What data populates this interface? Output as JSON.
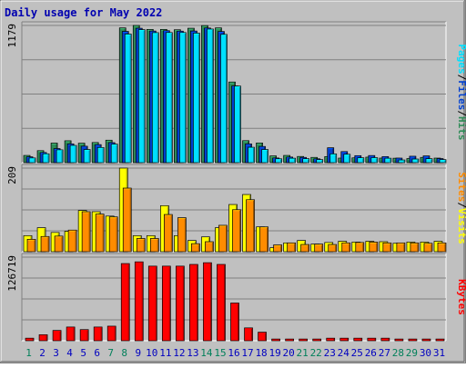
{
  "chart_data": {
    "type": "bar",
    "title": "Daily usage for May 2022",
    "categories": [
      "1",
      "2",
      "3",
      "4",
      "5",
      "6",
      "7",
      "8",
      "9",
      "10",
      "11",
      "12",
      "13",
      "14",
      "15",
      "16",
      "17",
      "18",
      "19",
      "20",
      "21",
      "22",
      "23",
      "24",
      "25",
      "26",
      "27",
      "28",
      "29",
      "30",
      "31"
    ],
    "weekend_days": [
      "1",
      "7",
      "8",
      "14",
      "15",
      "21",
      "22",
      "28",
      "29"
    ],
    "panels": [
      {
        "name": "hits-files-pages",
        "ymax_label": "1179",
        "ylim": [
          0,
          1179
        ],
        "series": [
          {
            "name": "Hits",
            "color": "#2e8b57",
            "values": [
              62,
              103,
              168,
              188,
              167,
              173,
              193,
              1158,
              1179,
              1145,
              1145,
              1142,
              1155,
              1178,
              1158,
              693,
              189,
              169,
              58,
              62,
              53,
              45,
              52,
              39,
              41,
              47,
              39,
              38,
              35,
              45,
              39
            ]
          },
          {
            "name": "Files",
            "color": "#0040d0",
            "values": [
              50,
              87,
              121,
              161,
              141,
              155,
              172,
              1128,
              1155,
              1131,
              1134,
              1130,
              1131,
              1157,
              1127,
              659,
              161,
              139,
              40,
              48,
              45,
              33,
              128,
              95,
              60,
              61,
              52,
              39,
              55,
              58,
              35
            ]
          },
          {
            "name": "Pages",
            "color": "#00e0ff",
            "values": [
              40,
              76,
              110,
              148,
              113,
              130,
              159,
              1105,
              1143,
              1117,
              1118,
              1118,
              1113,
              1148,
              1102,
              658,
              132,
              113,
              33,
              38,
              34,
              26,
              75,
              72,
              42,
              43,
              38,
              23,
              31,
              34,
              26
            ]
          }
        ]
      },
      {
        "name": "visits-sites",
        "ymax_label": "209",
        "ylim": [
          0,
          209
        ],
        "series": [
          {
            "name": "Visits",
            "color": "#ffff00",
            "values": [
              40,
              60,
              48,
              51,
              103,
              100,
              89,
              209,
              40,
              40,
              115,
              40,
              28,
              37,
              60,
              118,
              143,
              62,
              10,
              22,
              28,
              19,
              23,
              26,
              24,
              26,
              25,
              21,
              24,
              24,
              26
            ]
          },
          {
            "name": "Sites",
            "color": "#ff8c00",
            "values": [
              31,
              38,
              39,
              54,
              100,
              94,
              87,
              159,
              33,
              33,
              93,
              85,
              20,
              25,
              66,
              105,
              130,
              62,
              17,
              22,
              18,
              19,
              18,
              22,
              23,
              24,
              22,
              22,
              22,
              21,
              22
            ]
          }
        ]
      },
      {
        "name": "kbytes",
        "ymax_label": "126719",
        "ylim": [
          0,
          126719
        ],
        "series": [
          {
            "name": "KBytes",
            "color": "#ff0000",
            "values": [
              3900,
              9100,
              15600,
              20800,
              16900,
              20800,
              22100,
              117000,
              119600,
              113100,
              113100,
              113100,
              115700,
              118300,
              115700,
              57200,
              19500,
              13000,
              2600,
              2600,
              2600,
              2600,
              3900,
              3900,
              3900,
              3900,
              3900,
              2600,
              2600,
              2600,
              2600
            ]
          }
        ]
      }
    ]
  },
  "colors": {
    "frame_bg": "#c0c0c0",
    "plot_bg": "#c0c0c0",
    "title": "#0000b0",
    "weekday_label": "#0000c0",
    "weekend_label": "#00805a",
    "grid": "#000000"
  }
}
